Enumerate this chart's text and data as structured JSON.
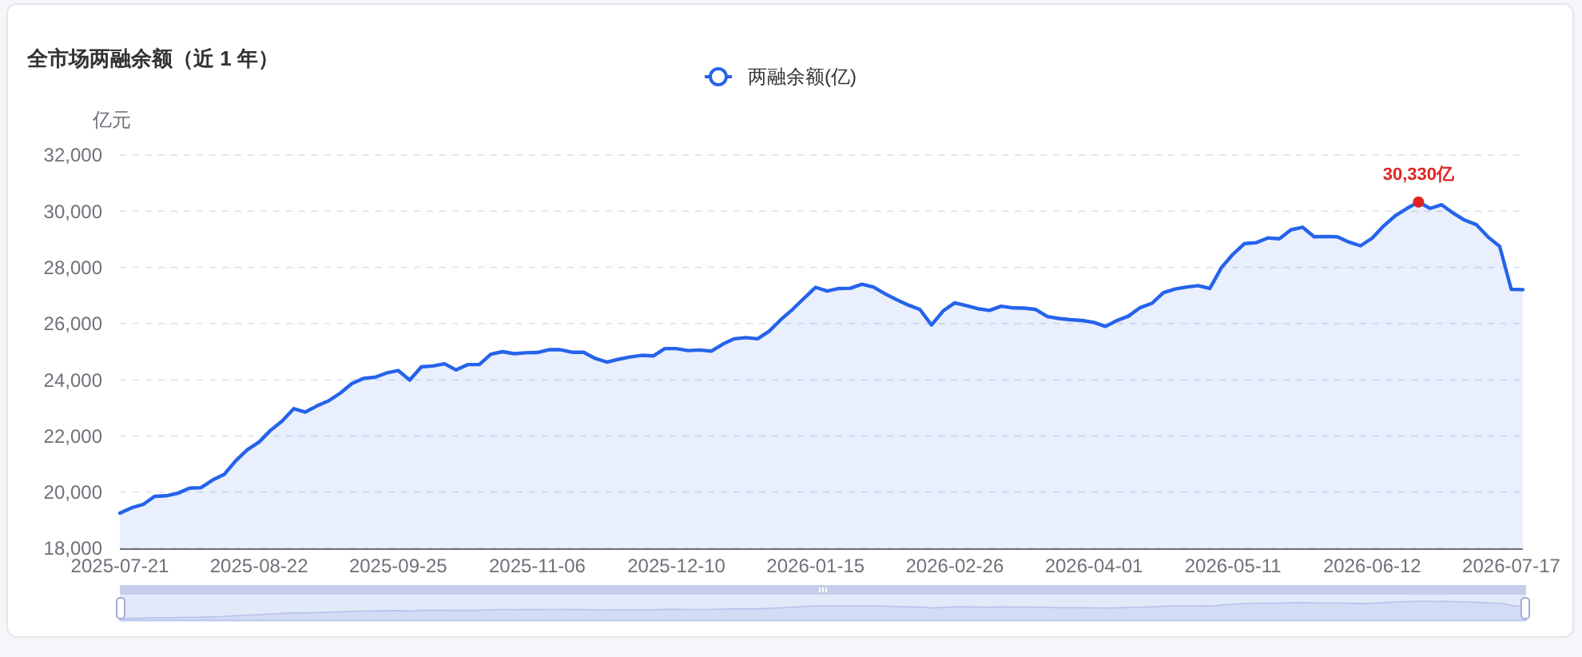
{
  "chart_data": {
    "type": "area",
    "title": "全市场两融余额（近 1 年）",
    "ylabel": "亿元",
    "categories": [
      "2025-07-21",
      null,
      null,
      null,
      null,
      null,
      null,
      null,
      null,
      null,
      null,
      null,
      "2025-08-22",
      null,
      null,
      null,
      null,
      null,
      null,
      null,
      null,
      null,
      null,
      null,
      "2025-09-25",
      null,
      null,
      null,
      null,
      null,
      null,
      null,
      null,
      null,
      null,
      null,
      "2025-11-06",
      null,
      null,
      null,
      null,
      null,
      null,
      null,
      null,
      null,
      null,
      null,
      "2025-12-10",
      null,
      null,
      null,
      null,
      null,
      null,
      null,
      null,
      null,
      null,
      null,
      "2026-01-15",
      null,
      null,
      null,
      null,
      null,
      null,
      null,
      null,
      null,
      null,
      null,
      "2026-02-26",
      null,
      null,
      null,
      null,
      null,
      null,
      null,
      null,
      null,
      null,
      null,
      "2026-04-01",
      null,
      null,
      null,
      null,
      null,
      null,
      null,
      null,
      null,
      null,
      null,
      "2026-05-11",
      null,
      null,
      null,
      null,
      null,
      null,
      null,
      null,
      null,
      null,
      null,
      "2026-06-12",
      null,
      null,
      null,
      null,
      null,
      null,
      null,
      null,
      null,
      null,
      null,
      "2026-07-17",
      null
    ],
    "series": [
      {
        "name": "两融余额(亿)",
        "color": "#2563eb",
        "values": [
          19250,
          19440,
          19560,
          19850,
          19870,
          19960,
          20140,
          20160,
          20430,
          20630,
          21120,
          21510,
          21780,
          22200,
          22530,
          22970,
          22850,
          23070,
          23250,
          23520,
          23860,
          24050,
          24090,
          24240,
          24330,
          23990,
          24460,
          24490,
          24570,
          24350,
          24540,
          24540,
          24910,
          25000,
          24930,
          24960,
          24970,
          25070,
          25070,
          24980,
          24980,
          24760,
          24630,
          24730,
          24810,
          24870,
          24850,
          25110,
          25110,
          25040,
          25060,
          25020,
          25270,
          25460,
          25500,
          25460,
          25730,
          26140,
          26500,
          26900,
          27290,
          27160,
          27250,
          27260,
          27400,
          27300,
          27060,
          26850,
          26660,
          26500,
          25950,
          26450,
          26740,
          26640,
          26530,
          26470,
          26620,
          26560,
          26550,
          26500,
          26250,
          26180,
          26140,
          26110,
          26040,
          25900,
          26110,
          26270,
          26570,
          26720,
          27100,
          27230,
          27300,
          27350,
          27250,
          27990,
          28470,
          28850,
          28880,
          29050,
          29020,
          29340,
          29430,
          29090,
          29100,
          29090,
          28900,
          28770,
          29040,
          29480,
          29840,
          30100,
          30330,
          30100,
          30230,
          29930,
          29680,
          29520,
          29080,
          28750,
          27220,
          27210
        ]
      }
    ],
    "ylim": [
      18000,
      32000
    ],
    "yticks": [
      {
        "value": 18000,
        "label": "18,000"
      },
      {
        "value": 20000,
        "label": "20,000"
      },
      {
        "value": 22000,
        "label": "22,000"
      },
      {
        "value": 24000,
        "label": "24,000"
      },
      {
        "value": 26000,
        "label": "26,000"
      },
      {
        "value": 28000,
        "label": "28,000"
      },
      {
        "value": 30000,
        "label": "30,000"
      },
      {
        "value": 32000,
        "label": "32,000"
      }
    ],
    "grid": "y",
    "legend": "top",
    "annotations": [
      {
        "text": "30,330亿",
        "y": 30330
      }
    ]
  }
}
